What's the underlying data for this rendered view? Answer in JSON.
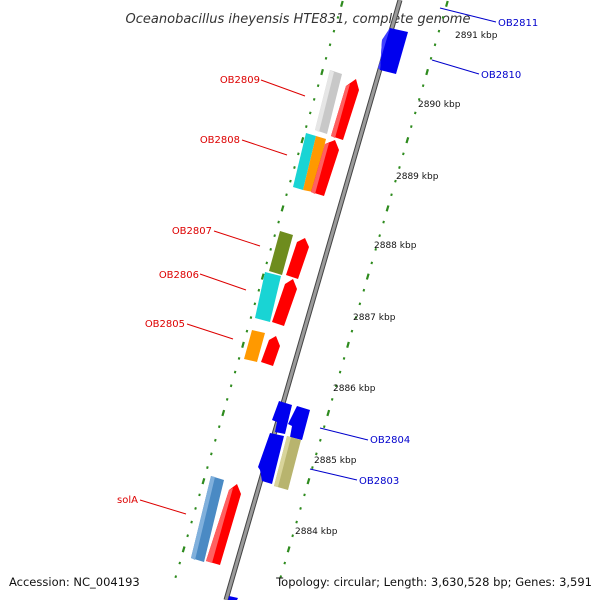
{
  "title": "Oceanobacillus iheyensis HTE831, complete genome",
  "footer": {
    "accession": "Accession: NC_004193",
    "topology": "Topology: circular; Length: 3,630,528 bp; Genes: 3,591"
  },
  "colors": {
    "backbone": "#888888",
    "tick_green": "#2e8b1e",
    "gene_red_label": "#dd0000",
    "gene_blue_label": "#0000cc",
    "cds_forward": "#ff0000",
    "cds_reverse": "#0000ee",
    "gray": "#c4c4c4",
    "cyan": "#19d4d4",
    "orange": "#ff9900",
    "olive": "#6e8c1e",
    "khaki": "#b8b46e",
    "steelblue": "#4a8ac4"
  },
  "kbp_labels": [
    "2891 kbp",
    "2890 kbp",
    "2889 kbp",
    "2888 kbp",
    "2887 kbp",
    "2886 kbp",
    "2885 kbp",
    "2884 kbp"
  ],
  "genes_left": [
    {
      "name": "OB2809"
    },
    {
      "name": "OB2808"
    },
    {
      "name": "OB2807"
    },
    {
      "name": "OB2806"
    },
    {
      "name": "OB2805"
    },
    {
      "name": "solA"
    }
  ],
  "genes_right": [
    {
      "name": "OB2811"
    },
    {
      "name": "OB2810"
    },
    {
      "name": "OB2804"
    },
    {
      "name": "OB2803"
    }
  ]
}
